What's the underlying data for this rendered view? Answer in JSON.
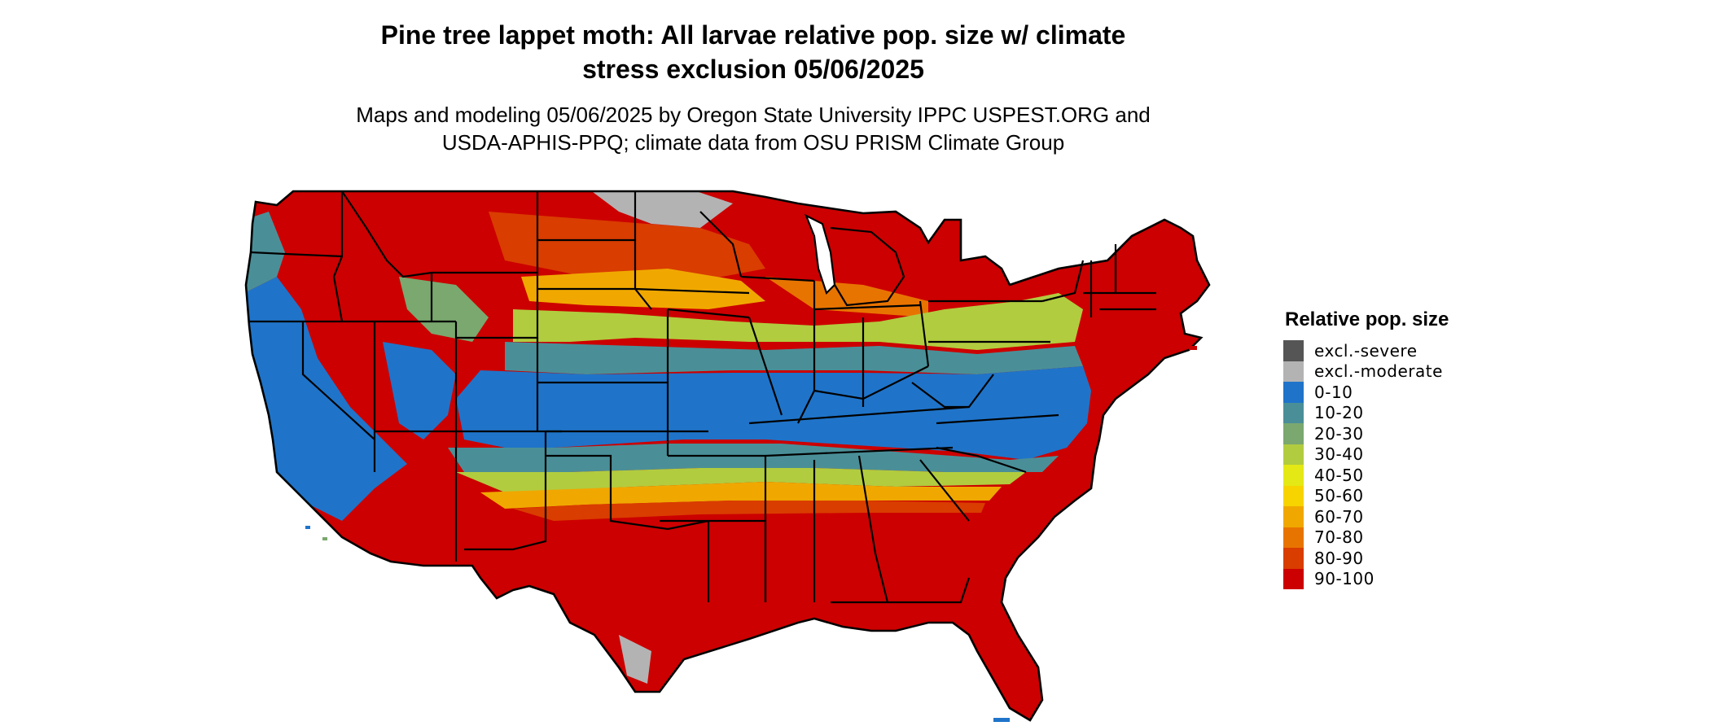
{
  "title": {
    "line1": "Pine tree lappet moth: All larvae relative pop. size w/ climate",
    "line2": "stress exclusion 05/06/2025"
  },
  "subtitle": {
    "line1": "Maps and modeling 05/06/2025 by Oregon State University IPPC USPEST.ORG and",
    "line2": "USDA-APHIS-PPQ; climate data from OSU PRISM Climate Group"
  },
  "legend": {
    "title": "Relative pop. size",
    "items": [
      {
        "label": "excl.-severe",
        "color": "#555555"
      },
      {
        "label": "excl.-moderate",
        "color": "#b3b3b3"
      },
      {
        "label": "0-10",
        "color": "#1f74c9"
      },
      {
        "label": "10-20",
        "color": "#4a8f98"
      },
      {
        "label": "20-30",
        "color": "#7aa86f"
      },
      {
        "label": "30-40",
        "color": "#b1cc3f"
      },
      {
        "label": "40-50",
        "color": "#e4e815"
      },
      {
        "label": "50-60",
        "color": "#f7d400"
      },
      {
        "label": "60-70",
        "color": "#f0a800"
      },
      {
        "label": "70-80",
        "color": "#e87400"
      },
      {
        "label": "80-90",
        "color": "#d93d00"
      },
      {
        "label": "90-100",
        "color": "#cc0000"
      }
    ]
  },
  "map": {
    "region": "Contiguous United States",
    "outline_color": "#000000"
  }
}
